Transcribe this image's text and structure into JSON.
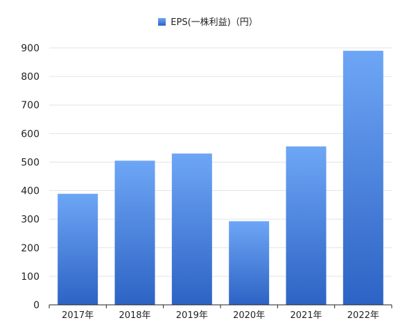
{
  "chart_data": {
    "type": "bar",
    "categories": [
      "2017年",
      "2018年",
      "2019年",
      "2020年",
      "2021年",
      "2022年"
    ],
    "series": [
      {
        "name": "EPS(一株利益)（円）",
        "values": [
          389,
          505,
          530,
          293,
          555,
          890
        ]
      }
    ],
    "title": "",
    "xlabel": "",
    "ylabel": "",
    "ylim": [
      0,
      900
    ],
    "yticks": [
      "0",
      "100",
      "200",
      "300",
      "400",
      "500",
      "600",
      "700",
      "800",
      "900"
    ],
    "grid": true,
    "legend_position": "top-center",
    "colors": {
      "bar_top": "#6ea6f6",
      "bar_bottom": "#2d63c4",
      "grid": "#e3e3e3",
      "axis": "#222222"
    }
  }
}
